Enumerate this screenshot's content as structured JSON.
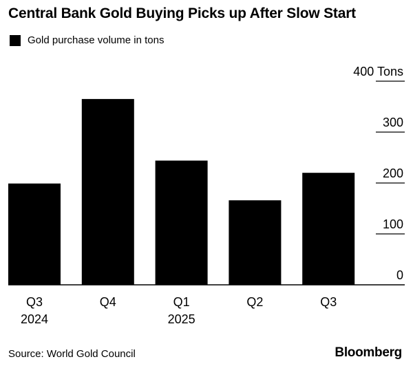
{
  "title": "Central Bank Gold Buying Picks up After Slow Start",
  "legend": {
    "label": "Gold purchase volume in tons",
    "color": "#000000"
  },
  "source": "Source: World Gold Council",
  "brand": "Bloomberg",
  "chart_data": {
    "type": "bar",
    "title": "Central Bank Gold Buying Picks up After Slow Start",
    "categories": [
      "Q3",
      "Q4",
      "Q1",
      "Q2",
      "Q3"
    ],
    "category_years": [
      "2024",
      "",
      "2025",
      "",
      ""
    ],
    "series": [
      {
        "name": "Gold purchase volume in tons",
        "values": [
          199,
          365,
          244,
          166,
          220
        ],
        "color": "#000000"
      }
    ],
    "ylim": [
      0,
      400
    ],
    "yticks": [
      {
        "value": 0,
        "label": "0"
      },
      {
        "value": 100,
        "label": "100"
      },
      {
        "value": 200,
        "label": "200"
      },
      {
        "value": 300,
        "label": "300"
      },
      {
        "value": 400,
        "label": "400 Tons"
      }
    ],
    "grid": false,
    "legend_position": "top-left"
  }
}
